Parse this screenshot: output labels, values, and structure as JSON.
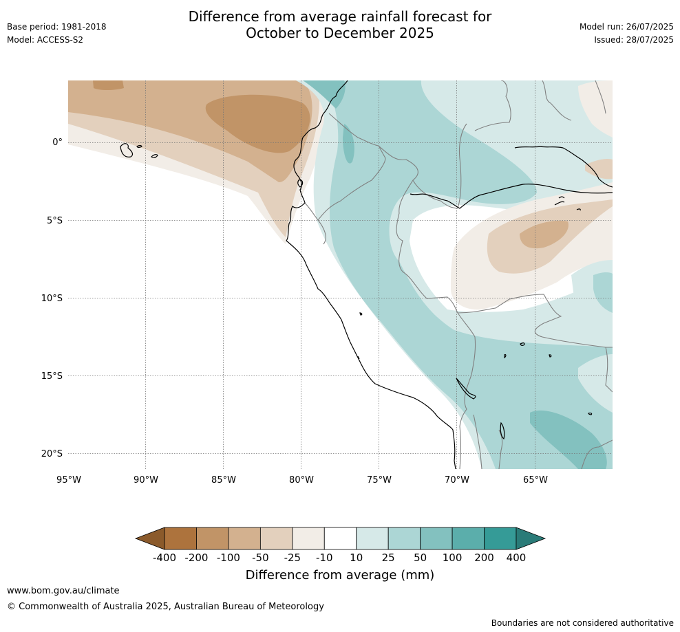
{
  "header": {
    "title_line1": "Difference from average rainfall forecast for",
    "title_line2": "October to December 2025",
    "base_period": "Base period: 1981-2018",
    "model": "Model: ACCESS-S2",
    "model_run": "Model run: 26/07/2025",
    "issued": "Issued: 28/07/2025"
  },
  "map": {
    "lat_labels": [
      "0°",
      "5°S",
      "10°S",
      "15°S",
      "20°S"
    ],
    "lon_labels": [
      "95°W",
      "90°W",
      "85°W",
      "80°W",
      "75°W",
      "70°W",
      "65°W"
    ]
  },
  "colorbar": {
    "ticks": [
      "-400",
      "-200",
      "-100",
      "-50",
      "-25",
      "-10",
      "10",
      "25",
      "50",
      "100",
      "200",
      "400"
    ],
    "colors": [
      "#8b5a2b",
      "#ad733d",
      "#c19467",
      "#d3b18f",
      "#e3d0bd",
      "#f2ede7",
      "#ffffff",
      "#d6e9e8",
      "#acd6d5",
      "#83c1bf",
      "#5baeab",
      "#359b97",
      "#2a7b78"
    ],
    "label": "Difference from average (mm)"
  },
  "footer": {
    "url": "www.bom.gov.au/climate",
    "copyright": "© Commonwealth of Australia 2025, Australian Bureau of Meteorology",
    "note": "Boundaries are not considered authoritative"
  }
}
